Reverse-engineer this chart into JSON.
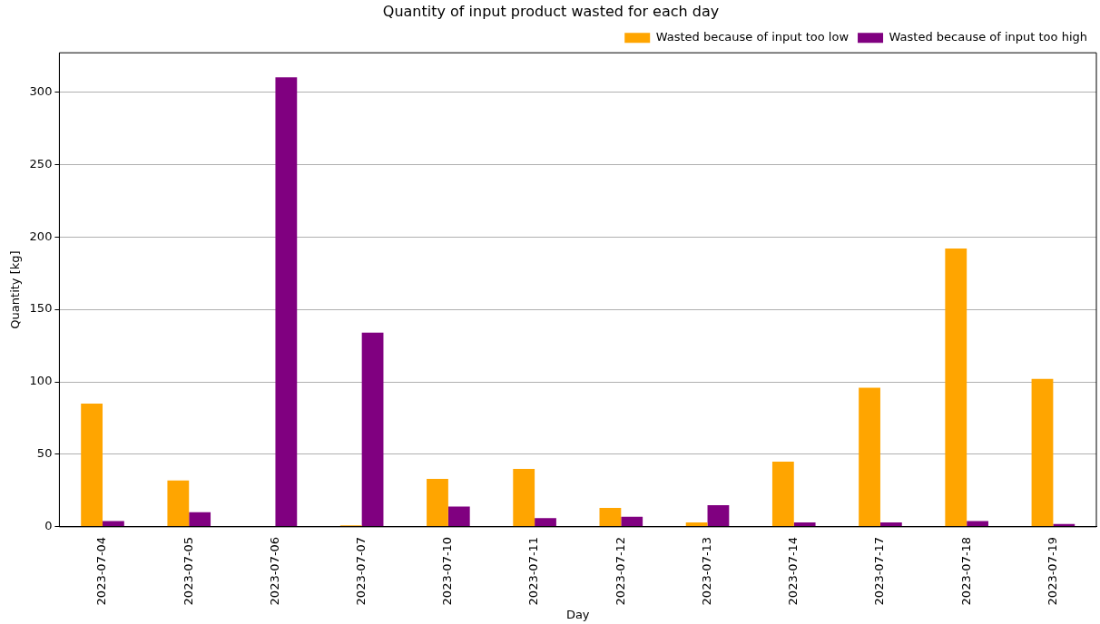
{
  "chart_data": {
    "type": "bar",
    "title": "Quantity of input product wasted for each day",
    "xlabel": "Day",
    "ylabel": "Quantity [kg]",
    "categories": [
      "2023-07-04",
      "2023-07-05",
      "2023-07-06",
      "2023-07-07",
      "2023-07-10",
      "2023-07-11",
      "2023-07-12",
      "2023-07-13",
      "2023-07-14",
      "2023-07-17",
      "2023-07-18",
      "2023-07-19"
    ],
    "series": [
      {
        "name": "Wasted because of input too low",
        "color": "#ffa500",
        "values": [
          85,
          32,
          0,
          1,
          33,
          40,
          13,
          3,
          45,
          96,
          192,
          102
        ]
      },
      {
        "name": "Wasted because of input too high",
        "color": "#800080",
        "values": [
          4,
          10,
          310,
          134,
          14,
          6,
          7,
          15,
          3,
          3,
          4,
          2
        ]
      }
    ],
    "ylim": [
      0,
      327
    ],
    "yticks": [
      0,
      50,
      100,
      150,
      200,
      250,
      300
    ],
    "grid": "y",
    "legend": "top right"
  }
}
